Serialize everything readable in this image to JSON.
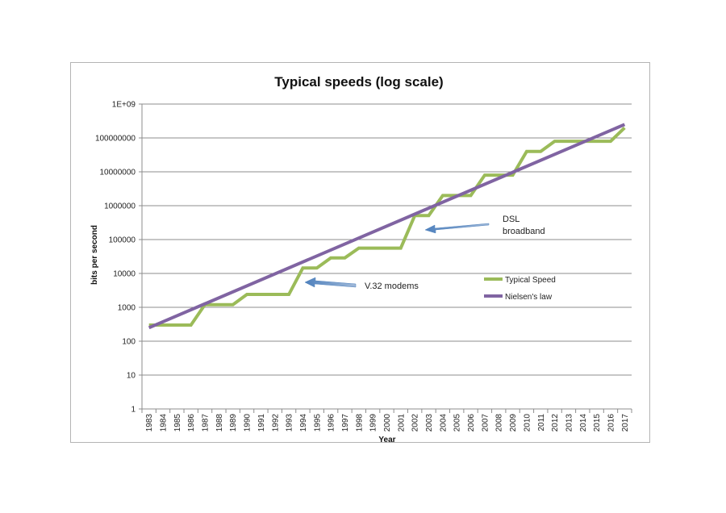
{
  "chart_data": {
    "type": "line",
    "title": "Typical speeds (log scale)",
    "xlabel": "Year",
    "ylabel": "bits per second",
    "yscale": "log",
    "ylim": [
      1,
      1000000000
    ],
    "ytick_labels": [
      "1",
      "10",
      "100",
      "1000",
      "10000",
      "100000",
      "1000000",
      "10000000",
      "100000000",
      "1E+09"
    ],
    "ytick_values": [
      1,
      10,
      100,
      1000,
      10000,
      100000,
      1000000,
      10000000,
      100000000,
      1000000000
    ],
    "categories": [
      "1983",
      "1984",
      "1985",
      "1986",
      "1987",
      "1988",
      "1989",
      "1990",
      "1991",
      "1992",
      "1993",
      "1994",
      "1995",
      "1996",
      "1997",
      "1998",
      "1999",
      "2000",
      "2001",
      "2002",
      "2003",
      "2004",
      "2005",
      "2006",
      "2007",
      "2008",
      "2009",
      "2010",
      "2011",
      "2012",
      "2013",
      "2014",
      "2015",
      "2016",
      "2017"
    ],
    "grid": true,
    "series": [
      {
        "name": "Typical Speed",
        "color": "#9bbb59",
        "values": [
          300,
          300,
          300,
          300,
          1200,
          1200,
          1200,
          2400,
          2400,
          2400,
          2400,
          14400,
          14400,
          28800,
          28800,
          56000,
          56000,
          56000,
          56000,
          512000,
          512000,
          2000000,
          2000000,
          2000000,
          8000000,
          8000000,
          8000000,
          40000000,
          40000000,
          80000000,
          80000000,
          80000000,
          80000000,
          80000000,
          200000000
        ]
      },
      {
        "name": "Nielsen's law",
        "color": "#8064a2",
        "start": 250,
        "end": 250000000
      }
    ],
    "annotations": [
      {
        "text": "V.32 modems",
        "points_to_year": "1994"
      },
      {
        "text_lines": [
          "DSL",
          "broadband"
        ],
        "points_to_year": "2002"
      }
    ],
    "legend_position": "right"
  }
}
